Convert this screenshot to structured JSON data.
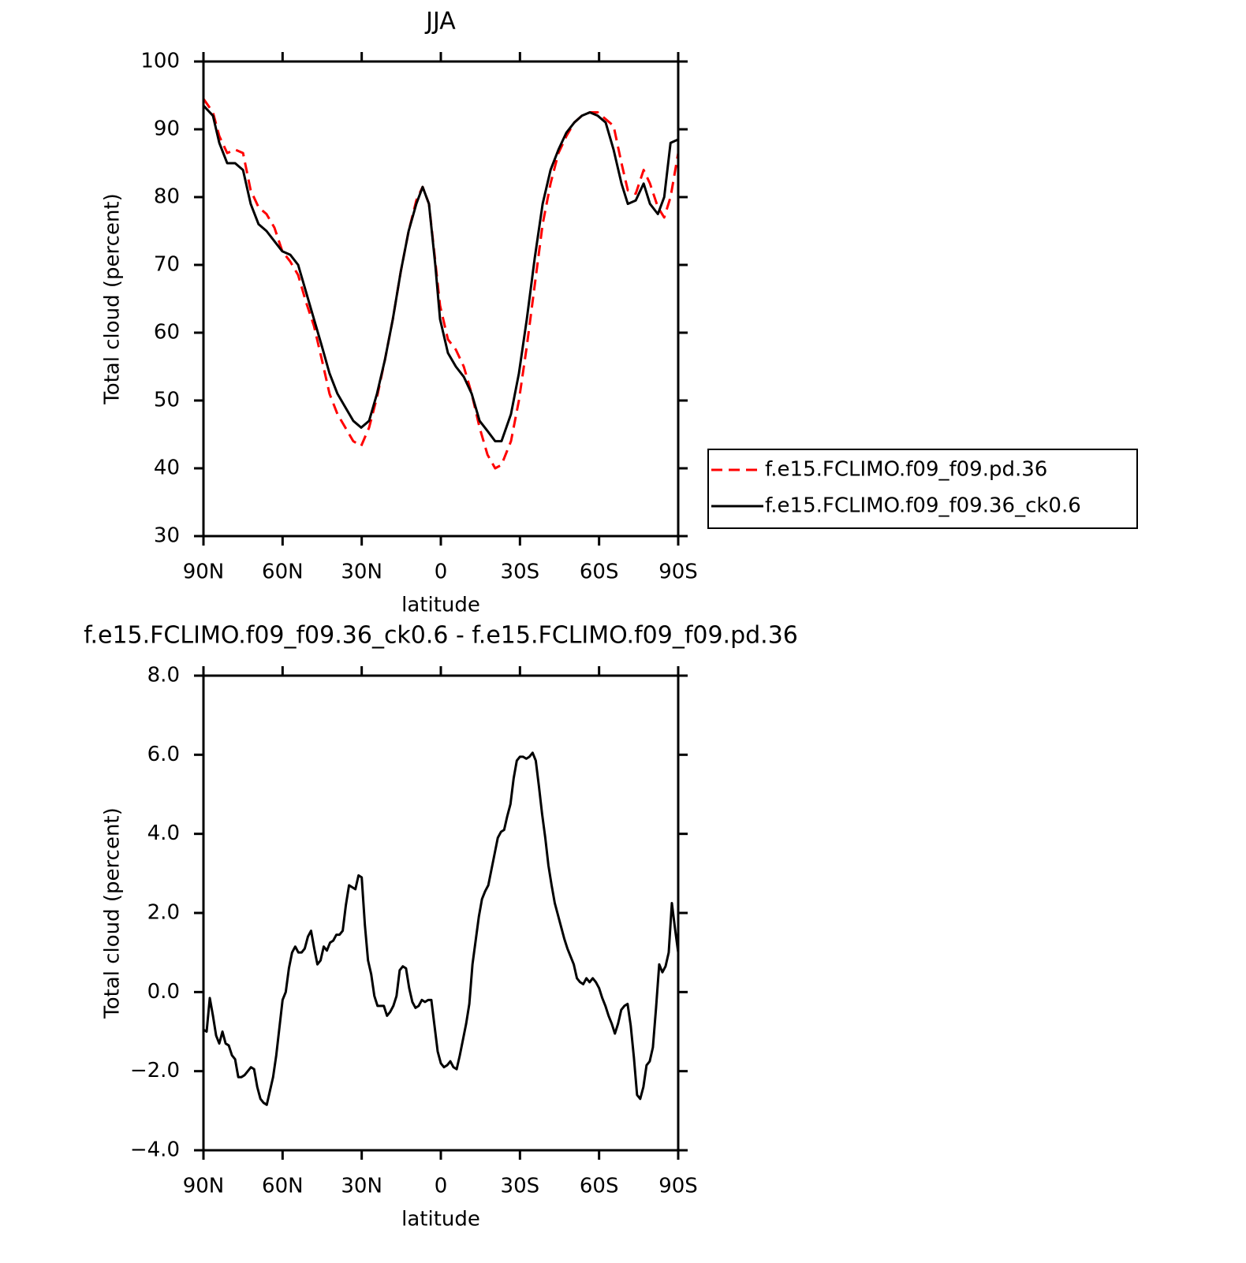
{
  "chart_data": [
    {
      "type": "line",
      "title": "JJA",
      "xlabel": "latitude",
      "ylabel": "Total cloud (percent)",
      "xlim": [
        90,
        -90
      ],
      "xticks": [
        {
          "value": 90,
          "label": "90N"
        },
        {
          "value": 60,
          "label": "60N"
        },
        {
          "value": 30,
          "label": "30N"
        },
        0,
        {
          "value": -30,
          "label": "30S"
        },
        {
          "value": -60,
          "label": "60S"
        },
        {
          "value": -90,
          "label": "90S"
        }
      ],
      "ylim": [
        30,
        100
      ],
      "yticks": [
        30,
        40,
        50,
        60,
        70,
        80,
        90,
        100
      ],
      "x": [
        90,
        86.4,
        84,
        81,
        78,
        75,
        72.1,
        69.1,
        66.1,
        63.1,
        60.1,
        57.1,
        54.1,
        51.1,
        48.1,
        45.1,
        42.2,
        39.2,
        36.2,
        33.2,
        30.2,
        27.2,
        24.2,
        21.2,
        18.2,
        15.2,
        12.2,
        9.3,
        6.9,
        4.5,
        2.1,
        0.3,
        -2.7,
        -5.7,
        -8.7,
        -11.7,
        -14.7,
        -17.7,
        -20.6,
        -23,
        -26.6,
        -29.6,
        -32.6,
        -35.6,
        -38.6,
        -41.6,
        -44.6,
        -47.6,
        -50.6,
        -53.5,
        -56.5,
        -59.5,
        -62.5,
        -65.5,
        -68.5,
        -70.9,
        -73.9,
        -76.9,
        -79.3,
        -82.3,
        -84.7,
        -87.1,
        -90
      ],
      "series": [
        {
          "name": "f.e15.FCLIMO.f09_f09.pd.36",
          "color": "#ff0000",
          "style": "dashed",
          "values": [
            94.5,
            92.5,
            89,
            86.5,
            87,
            86.5,
            81,
            78.5,
            77.5,
            75.5,
            72,
            70.5,
            68.5,
            64.5,
            61,
            56,
            51,
            48,
            46,
            44,
            43.3,
            46,
            50.5,
            56,
            62,
            69,
            75,
            79.5,
            81.5,
            79,
            70.5,
            64,
            59,
            57.5,
            55,
            51,
            46,
            42,
            40,
            40.5,
            44,
            50,
            58,
            67,
            76,
            82,
            86.5,
            89,
            91,
            92,
            92.5,
            92.5,
            91.5,
            90.5,
            85,
            81,
            80.5,
            84,
            82,
            78.5,
            77,
            80,
            86.5
          ]
        },
        {
          "name": "f.e15.FCLIMO.f09_f09.36_ck0.6",
          "color": "#000000",
          "style": "solid",
          "values": [
            93.5,
            92,
            88,
            85,
            85,
            84,
            79,
            76,
            75,
            73.5,
            72,
            71.5,
            70,
            66,
            62,
            58,
            54,
            51,
            49,
            47,
            46,
            47,
            51,
            56,
            62,
            69,
            75,
            79,
            81.5,
            79,
            70,
            62,
            57,
            55,
            53.5,
            51,
            47,
            45.5,
            44,
            44,
            48,
            54,
            62,
            71,
            79,
            84,
            87,
            89.5,
            91,
            92,
            92.5,
            92,
            91,
            87,
            82,
            79,
            79.5,
            82,
            79,
            77.5,
            80,
            88,
            88.5
          ]
        }
      ]
    },
    {
      "type": "line",
      "title": "f.e15.FCLIMO.f09_f09.36_ck0.6 - f.e15.FCLIMO.f09_f09.pd.36",
      "xlabel": "latitude",
      "ylabel": "Total cloud (percent)",
      "xlim": [
        90,
        -90
      ],
      "xticks": [
        {
          "value": 90,
          "label": "90N"
        },
        {
          "value": 60,
          "label": "60N"
        },
        {
          "value": 30,
          "label": "30N"
        },
        0,
        {
          "value": -30,
          "label": "30S"
        },
        {
          "value": -60,
          "label": "60S"
        },
        {
          "value": -90,
          "label": "90S"
        }
      ],
      "ylim": [
        -4,
        8
      ],
      "yticks": [
        {
          "value": -4,
          "label": "−4.0"
        },
        {
          "value": -2,
          "label": "−2.0"
        },
        {
          "value": 0,
          "label": "0.0"
        },
        {
          "value": 2,
          "label": "2.0"
        },
        {
          "value": 4,
          "label": "4.0"
        },
        {
          "value": 6,
          "label": "6.0"
        },
        {
          "value": 8,
          "label": "8.0"
        }
      ],
      "color": "#000000",
      "x": [
        90,
        88.8,
        87.6,
        86.4,
        85.2,
        84,
        82.8,
        81.6,
        80.4,
        79.2,
        78,
        76.8,
        75.6,
        74.4,
        73.2,
        72,
        70.8,
        69.6,
        68.4,
        67.2,
        66,
        64.8,
        63.6,
        62.4,
        61.2,
        60,
        58.8,
        57.6,
        56.4,
        55.2,
        54,
        52.8,
        51.6,
        50.4,
        49.2,
        48,
        46.8,
        45.6,
        44.4,
        43.2,
        42,
        40.8,
        39.6,
        38.4,
        37.2,
        36,
        34.8,
        33.6,
        32.4,
        31.2,
        30,
        28.8,
        27.6,
        26.4,
        25.2,
        24,
        22.8,
        21.6,
        20.4,
        19.2,
        18,
        16.8,
        15.6,
        14.4,
        13.2,
        12,
        10.8,
        9.6,
        8.4,
        7.2,
        6,
        4.8,
        3.6,
        2.4,
        1.2,
        0,
        -1.2,
        -2.4,
        -3.6,
        -4.8,
        -6,
        -7.2,
        -8.4,
        -9.6,
        -10.8,
        -12,
        -13.2,
        -14.4,
        -15.6,
        -16.8,
        -18,
        -19.2,
        -20.4,
        -21.6,
        -22.8,
        -24,
        -25.2,
        -26.4,
        -27.6,
        -28.8,
        -30,
        -31.2,
        -32.4,
        -33.6,
        -34.8,
        -36,
        -37.2,
        -38.4,
        -39.6,
        -40.8,
        -42,
        -43.2,
        -44.4,
        -45.6,
        -46.8,
        -48,
        -49.2,
        -50.4,
        -51.6,
        -52.8,
        -54,
        -55.2,
        -56.4,
        -57.6,
        -58.8,
        -60,
        -61.2,
        -62.4,
        -63.6,
        -64.8,
        -66,
        -67.2,
        -68.4,
        -69.6,
        -70.8,
        -72,
        -73.2,
        -74.4,
        -75.6,
        -76.8,
        -78,
        -79.2,
        -80.4,
        -81.6,
        -82.8,
        -84,
        -85.2,
        -86.4,
        -87.6,
        -88.8,
        -90
      ],
      "values": [
        -0.95,
        -1.0,
        -0.15,
        -0.6,
        -1.1,
        -1.3,
        -1.0,
        -1.3,
        -1.35,
        -1.6,
        -1.7,
        -2.15,
        -2.15,
        -2.1,
        -2.0,
        -1.9,
        -1.95,
        -2.4,
        -2.7,
        -2.8,
        -2.85,
        -2.5,
        -2.15,
        -1.6,
        -0.9,
        -0.2,
        0.0,
        0.6,
        1.0,
        1.15,
        1.0,
        1.0,
        1.1,
        1.4,
        1.55,
        1.1,
        0.7,
        0.8,
        1.15,
        1.05,
        1.25,
        1.3,
        1.45,
        1.45,
        1.55,
        2.2,
        2.7,
        2.65,
        2.6,
        2.95,
        2.9,
        1.7,
        0.8,
        0.45,
        -0.1,
        -0.35,
        -0.35,
        -0.35,
        -0.6,
        -0.5,
        -0.35,
        -0.1,
        0.55,
        0.65,
        0.6,
        0.1,
        -0.25,
        -0.4,
        -0.35,
        -0.2,
        -0.25,
        -0.2,
        -0.2,
        -0.85,
        -1.5,
        -1.8,
        -1.9,
        -1.85,
        -1.75,
        -1.9,
        -1.95,
        -1.6,
        -1.2,
        -0.8,
        -0.3,
        0.7,
        1.3,
        1.9,
        2.35,
        2.55,
        2.7,
        3.1,
        3.5,
        3.9,
        4.05,
        4.1,
        4.45,
        4.75,
        5.4,
        5.85,
        5.95,
        5.95,
        5.9,
        5.95,
        6.05,
        5.85,
        5.2,
        4.5,
        3.9,
        3.2,
        2.7,
        2.25,
        1.95,
        1.65,
        1.35,
        1.1,
        0.9,
        0.7,
        0.35,
        0.25,
        0.2,
        0.35,
        0.25,
        0.35,
        0.25,
        0.1,
        -0.15,
        -0.35,
        -0.6,
        -0.8,
        -1.05,
        -0.8,
        -0.45,
        -0.35,
        -0.3,
        -0.85,
        -1.65,
        -2.6,
        -2.7,
        -2.4,
        -1.85,
        -1.75,
        -1.4,
        -0.4,
        0.7,
        0.5,
        0.65,
        1.0,
        2.25,
        1.6,
        1.0
      ]
    }
  ]
}
